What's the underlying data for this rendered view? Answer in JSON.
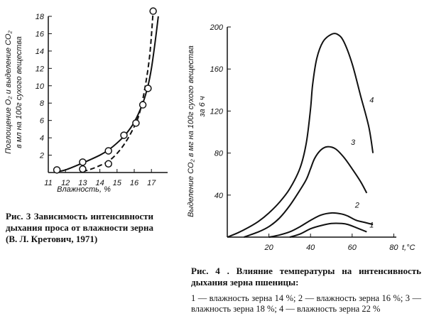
{
  "chart_data": [
    {
      "type": "scatter",
      "caption": "Рис. 3  Зависимость интенсивности дыхания проса от влажности зерна (В. Л. Кретович, 1971)",
      "ylabel_line1": "Поглощение O₂ и выделение CO₂",
      "ylabel_line2": "в мл на 100г сухого вещества",
      "xlabel": "Влажность, %",
      "xlim": [
        11,
        17.6
      ],
      "ylim": [
        0,
        18
      ],
      "xticks": [
        11,
        12,
        13,
        14,
        15,
        16,
        17
      ],
      "yticks": [
        2,
        4,
        6,
        8,
        10,
        12,
        14,
        16,
        18
      ],
      "points": [
        [
          11.5,
          0.3
        ],
        [
          13,
          1.2
        ],
        [
          13,
          0.4
        ],
        [
          14.5,
          2.5
        ],
        [
          14.5,
          1.0
        ],
        [
          15.4,
          4.3
        ],
        [
          16.1,
          5.7
        ],
        [
          16.5,
          7.8
        ],
        [
          16.8,
          9.7
        ],
        [
          17.1,
          18.6
        ]
      ],
      "series": [
        {
          "style": "solid",
          "x": [
            11.5,
            12,
            13,
            14,
            14.5,
            15,
            15.5,
            16,
            16.5,
            16.8,
            17,
            17.2,
            17.4
          ],
          "y": [
            0.1,
            0.3,
            1.1,
            2.0,
            2.6,
            3.4,
            4.4,
            5.8,
            8.0,
            10.0,
            12.0,
            14.8,
            18.0
          ]
        },
        {
          "style": "dashed",
          "x": [
            13,
            13.5,
            14,
            14.5,
            15,
            15.5,
            16,
            16.3,
            16.6,
            16.9,
            17.1
          ],
          "y": [
            0.1,
            0.4,
            0.8,
            1.3,
            2.2,
            3.5,
            5.3,
            6.8,
            9.5,
            13.5,
            18.6
          ]
        }
      ]
    },
    {
      "type": "line",
      "caption": "Рис. 4 . Влияние температуры на интенсивность дыхания зерна пшеницы:",
      "legend": "1 — влажность зерна 14 %; 2 — влажность зерна 16 %; 3 — влажность зерна 18 %; 4 — влажность зерна 22 %",
      "ylabel_line1": "Выделение CO₂ в мг на 100г сухого вещества",
      "ylabel_line2": "за 6 ч",
      "xlabel": "t,°C",
      "xlim": [
        0,
        83
      ],
      "ylim": [
        0,
        200
      ],
      "xticks": [
        20,
        40,
        60,
        80
      ],
      "yticks": [
        40,
        80,
        120,
        160,
        200
      ],
      "series": [
        {
          "name": "1",
          "x": [
            30,
            35,
            40,
            45,
            50,
            55,
            58,
            62,
            67
          ],
          "y": [
            0,
            3,
            8,
            11,
            13,
            13,
            12,
            9,
            5
          ]
        },
        {
          "name": "2",
          "x": [
            20,
            25,
            30,
            35,
            40,
            45,
            50,
            55,
            58,
            62,
            66,
            70
          ],
          "y": [
            0,
            2,
            5,
            10,
            16,
            21,
            23,
            22,
            20,
            16,
            14,
            12
          ]
        },
        {
          "name": "3",
          "x": [
            8,
            15,
            20,
            25,
            30,
            35,
            38,
            40,
            42,
            45,
            48,
            52,
            56,
            60,
            64,
            67
          ],
          "y": [
            0,
            5,
            10,
            18,
            30,
            45,
            55,
            65,
            75,
            83,
            86,
            84,
            76,
            65,
            53,
            42
          ]
        },
        {
          "name": "4",
          "x": [
            0,
            5,
            10,
            15,
            20,
            25,
            30,
            35,
            38,
            40,
            41,
            43,
            46,
            50,
            53,
            56,
            60,
            64,
            68,
            70
          ],
          "y": [
            0,
            4,
            9,
            15,
            23,
            33,
            46,
            66,
            90,
            122,
            145,
            170,
            186,
            193,
            193,
            186,
            165,
            135,
            105,
            80
          ]
        }
      ]
    }
  ]
}
